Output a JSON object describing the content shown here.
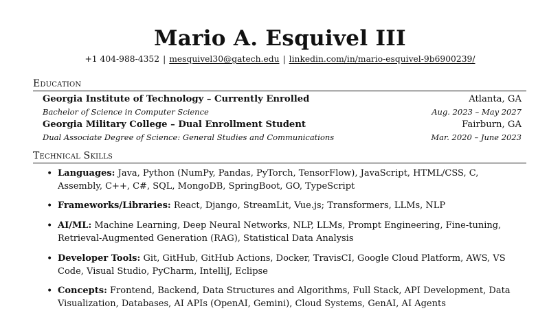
{
  "header": {
    "name": "Mario A. Esquivel III",
    "phone": "+1 404-988-4352",
    "email": "mesquivel30@gatech.edu",
    "linkedin": "linkedin.com/in/mario-esquivel-9b6900239/",
    "separator": "|"
  },
  "education": {
    "heading": "Education",
    "entries": [
      {
        "school": "Georgia Institute of Technology – Currently Enrolled",
        "location": "Atlanta, GA",
        "degree": "Bachelor of Science in Computer Science",
        "dates": "Aug. 2023 – May 2027"
      },
      {
        "school": "Georgia Military College – Dual Enrollment Student",
        "location": "Fairburn, GA",
        "degree": "Dual Associate Degree of Science: General Studies and Communications",
        "dates": "Mar. 2020 – June 2023"
      }
    ]
  },
  "skills": {
    "heading": "Technical Skills",
    "items": [
      {
        "label": "Languages:",
        "text": "Java, Python (NumPy, Pandas, PyTorch, TensorFlow), JavaScript, HTML/CSS, C, Assembly, C++, C#, SQL, MongoDB, SpringBoot, GO, TypeScript"
      },
      {
        "label": "Frameworks/Libraries:",
        "text": "React, Django, StreamLit, Vue.js; Transformers, LLMs, NLP"
      },
      {
        "label": "AI/ML:",
        "text": "Machine Learning, Deep Neural Networks, NLP, LLMs, Prompt Engineering, Fine-tuning, Retrieval-Augmented Generation (RAG), Statistical Data Analysis"
      },
      {
        "label": "Developer Tools:",
        "text": "Git, GitHub, GitHub Actions, Docker, TravisCI, Google Cloud Platform, AWS, VS Code, Visual Studio, PyCharm, IntelliJ, Eclipse"
      },
      {
        "label": "Concepts:",
        "text": "Frontend, Backend, Data Structures and Algorithms, Full Stack, API Development, Data Visualization, Databases, AI APIs (OpenAI, Gemini), Cloud Systems, GenAI, AI Agents"
      }
    ]
  }
}
